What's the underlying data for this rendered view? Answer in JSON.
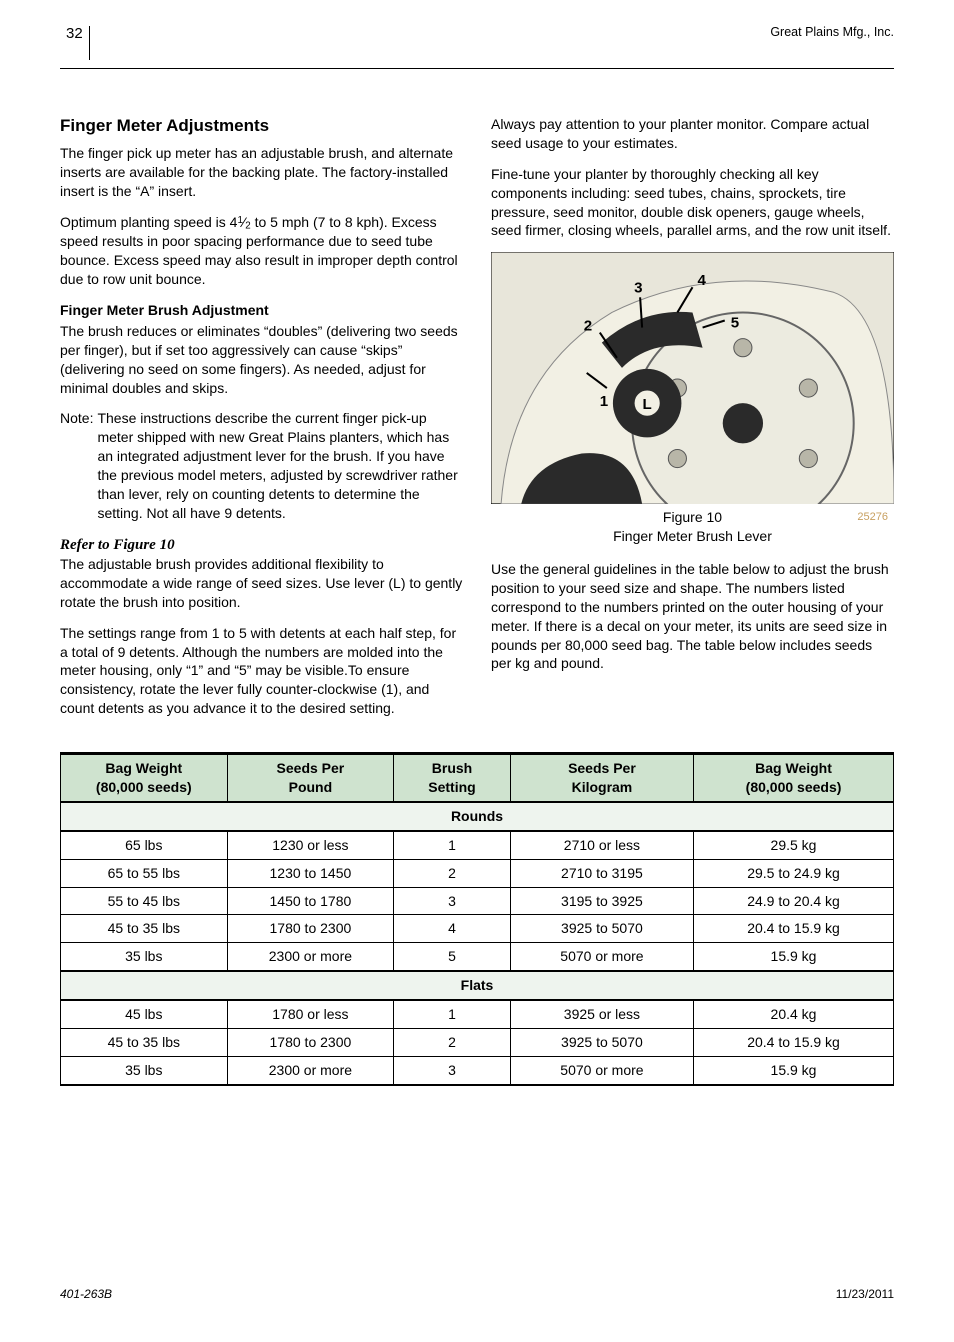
{
  "header": {
    "page_number": "32",
    "company": "Great Plains Mfg., Inc."
  },
  "section_title": "Finger Meter Adjustments",
  "left_col": {
    "p1": "The finger pick up meter has an adjustable brush, and alternate inserts are available for the backing plate. The factory-installed insert is the “A” insert.",
    "p2_pre": "Optimum planting speed is 4",
    "p2_post": " to 5 mph (7 to 8 kph). Excess speed results in poor spacing performance due to seed tube bounce. Excess speed may also result in improper depth control due to row unit bounce.",
    "brush_head": "Finger Meter Brush Adjustment",
    "p3": "The brush reduces or eliminates “doubles” (delivering two seeds per finger), but if set too aggressively can cause “skips” (delivering no seed on some fingers). As needed, adjust for minimal doubles and skips.",
    "note_label": "Note:",
    "note_body": "These instructions describe the current finger pick-up meter shipped with new Great Plains planters, which has an integrated adjustment lever for the brush. If you have the previous model meters, adjusted by screwdriver rather than lever, rely on counting detents to determine the setting. Not all have 9 detents.",
    "refer": "Refer to Figure 10",
    "p4": "The adjustable brush provides additional flexibility to accommodate a wide range of seed sizes. Use lever (L) to gently rotate the brush into position.",
    "p5": "The settings range from 1 to 5 with detents at each half step, for a total of 9 detents. Although the numbers are molded into the meter housing, only “1” and “5” may be visible.To ensure consistency, rotate the lever fully counter-clockwise (1), and count detents as you advance it to the desired setting."
  },
  "right_col": {
    "p1": "Always pay attention to your planter monitor. Compare actual seed usage to your estimates.",
    "p2": "Fine-tune your planter by thoroughly checking all key components including: seed tubes, chains, sprockets, tire pressure, seed monitor, double disk openers, gauge wheels, seed firmer, closing wheels, parallel arms, and the row unit itself.",
    "fig_num": "Figure 10",
    "fig_title": "Finger Meter Brush Lever",
    "fig_id": "25276",
    "p3": "Use the general guidelines in the table below to adjust the brush position to your seed size and shape. The numbers listed correspond to the numbers printed on the outer housing of your meter. If there is a decal on your meter, its units are seed size in pounds per 80,000 seed bag. The table below includes seeds per kg and pound."
  },
  "figure": {
    "bg": "#e8e6da",
    "plate": "#f2f0e4",
    "dark": "#2a2a2a",
    "bolt": "#b8b6a8",
    "labels": {
      "n1": "1",
      "n2": "2",
      "n3": "3",
      "n4": "4",
      "n5": "5",
      "L": "L"
    }
  },
  "table": {
    "header_bg": "#cfe3cf",
    "section_bg": "#eef4ee",
    "headers": {
      "c1a": "Bag Weight",
      "c1b": "(80,000 seeds)",
      "c2a": "Seeds Per",
      "c2b": "Pound",
      "c3a": "Brush",
      "c3b": "Setting",
      "c4a": "Seeds Per",
      "c4b": "Kilogram",
      "c5a": "Bag Weight",
      "c5b": "(80,000 seeds)"
    },
    "section1": "Rounds",
    "rounds": [
      [
        "65 lbs",
        "1230 or less",
        "1",
        "2710 or less",
        "29.5 kg"
      ],
      [
        "65 to 55 lbs",
        "1230 to 1450",
        "2",
        "2710 to 3195",
        "29.5 to 24.9 kg"
      ],
      [
        "55 to 45 lbs",
        "1450 to 1780",
        "3",
        "3195 to 3925",
        "24.9 to 20.4 kg"
      ],
      [
        "45 to 35 lbs",
        "1780 to 2300",
        "4",
        "3925 to 5070",
        "20.4 to 15.9 kg"
      ],
      [
        "35 lbs",
        "2300 or more",
        "5",
        "5070 or more",
        "15.9 kg"
      ]
    ],
    "section2": "Flats",
    "flats": [
      [
        "45 lbs",
        "1780 or less",
        "1",
        "3925 or less",
        "20.4 kg"
      ],
      [
        "45 to 35 lbs",
        "1780 to 2300",
        "2",
        "3925 to 5070",
        "20.4 to 15.9 kg"
      ],
      [
        "35 lbs",
        "2300 or more",
        "3",
        "5070 or more",
        "15.9 kg"
      ]
    ]
  },
  "footer": {
    "doc": "401-263B",
    "date": "11/23/2011"
  }
}
